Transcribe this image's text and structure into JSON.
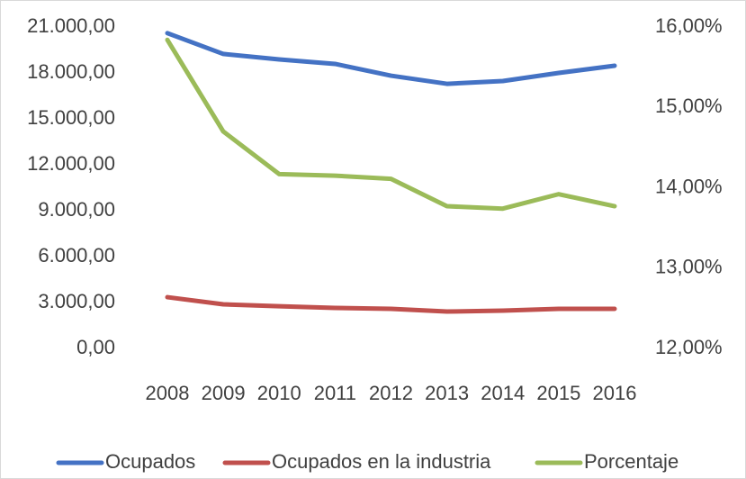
{
  "chart_data": {
    "type": "line",
    "categories": [
      "2008",
      "2009",
      "2010",
      "2011",
      "2012",
      "2013",
      "2014",
      "2015",
      "2016"
    ],
    "series": [
      {
        "name": "Ocupados",
        "color": "#4472c4",
        "values": [
          20600,
          19240,
          18880,
          18590,
          17820,
          17290,
          17470,
          18000,
          18470
        ]
      },
      {
        "name": "Ocupados en la industria",
        "color": "#c0504d",
        "values": [
          3350,
          2880,
          2760,
          2650,
          2590,
          2410,
          2470,
          2590,
          2590
        ]
      },
      {
        "name": "Porcentaje",
        "color": "#9bbb59",
        "axis": "y2",
        "values": [
          15.84,
          14.7,
          14.17,
          14.15,
          14.11,
          13.77,
          13.74,
          13.92,
          13.77
        ]
      }
    ],
    "ylim": [
      0,
      21000
    ],
    "yticks": [
      {
        "value": 0,
        "label": "0,00"
      },
      {
        "value": 3000,
        "label": "3.000,00"
      },
      {
        "value": 6000,
        "label": "6.000,00"
      },
      {
        "value": 9000,
        "label": "9.000,00"
      },
      {
        "value": 12000,
        "label": "12.000,00"
      },
      {
        "value": 15000,
        "label": "15.000,00"
      },
      {
        "value": 18000,
        "label": "18.000,00"
      },
      {
        "value": 21000,
        "label": "21.000,00"
      }
    ],
    "y2lim": [
      12,
      16
    ],
    "y2ticks": [
      {
        "value": 12,
        "label": "12,00%"
      },
      {
        "value": 13,
        "label": "13,00%"
      },
      {
        "value": 14,
        "label": "14,00%"
      },
      {
        "value": 15,
        "label": "15,00%"
      },
      {
        "value": 16,
        "label": "16,00%"
      }
    ],
    "legend": "bottom"
  }
}
